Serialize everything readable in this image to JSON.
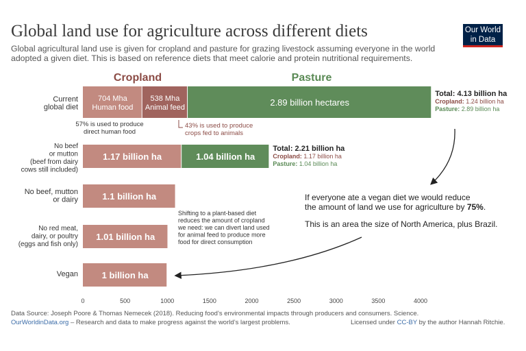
{
  "header": {
    "title": "Global land use for agriculture across different diets",
    "subtitle": "Global agricultural land use is given for cropland and pasture for grazing livestock assuming everyone in the world adopted a given diet. This is based on reference diets that meet calorie and protein nutritional requirements."
  },
  "logo": {
    "line1": "Our World",
    "line2": "in Data"
  },
  "colors": {
    "cropland": "#c28a80",
    "animal_feed": "#a0645e",
    "pasture": "#5f8c5a",
    "cropland_label": "#8b4b45",
    "pasture_label": "#5a8a55"
  },
  "chart_data": {
    "type": "bar",
    "orientation": "horizontal",
    "stacked": true,
    "xlim": [
      0,
      4000
    ],
    "xticks": [
      "0",
      "500",
      "1000",
      "1500",
      "2000",
      "2500",
      "3000",
      "3500",
      "4000"
    ],
    "legend": {
      "cropland": "Cropland",
      "pasture": "Pasture"
    },
    "categories": [
      {
        "label_lines": [
          "Current",
          "global diet"
        ],
        "segments": [
          {
            "type": "human_food",
            "value": 704,
            "label_lines": [
              "704 Mha",
              "Human food"
            ]
          },
          {
            "type": "animal_feed",
            "value": 538,
            "label_lines": [
              "538 Mha",
              "Animal feed"
            ]
          },
          {
            "type": "pasture",
            "value": 2890,
            "label_lines": [
              "2.89 billion hectares"
            ]
          }
        ],
        "total": {
          "title": "Total: 4.13 billion ha",
          "cropland_key": "Cropland:",
          "cropland_val": "1.24 billion ha",
          "pasture_key": "Pasture:",
          "pasture_val": "2.89 billion ha"
        }
      },
      {
        "label_lines": [
          "No beef",
          "or mutton",
          "(beef from dairy",
          "cows still included)"
        ],
        "segments": [
          {
            "type": "cropland",
            "value": 1170,
            "label_lines": [
              "1.17 billion ha"
            ]
          },
          {
            "type": "pasture",
            "value": 1040,
            "label_lines": [
              "1.04 billion ha"
            ]
          }
        ],
        "total": {
          "title": "Total: 2.21 billion ha",
          "cropland_key": "Cropland:",
          "cropland_val": "1.17 billion ha",
          "pasture_key": "Pasture:",
          "pasture_val": "1.04 billion ha"
        }
      },
      {
        "label_lines": [
          "No beef, mutton",
          "or dairy"
        ],
        "segments": [
          {
            "type": "cropland",
            "value": 1100,
            "label_lines": [
              "1.1 billion ha"
            ]
          }
        ]
      },
      {
        "label_lines": [
          "No red meat,",
          "dairy, or poultry",
          "(eggs and fish only)"
        ],
        "segments": [
          {
            "type": "cropland",
            "value": 1010,
            "label_lines": [
              "1.01 billion ha"
            ]
          }
        ]
      },
      {
        "label_lines": [
          "Vegan"
        ],
        "segments": [
          {
            "type": "cropland",
            "value": 1000,
            "label_lines": [
              "1 billion ha"
            ]
          }
        ]
      }
    ],
    "annotations": {
      "human_food_note": [
        "57% is used to produce",
        "direct human food"
      ],
      "animal_feed_note": [
        "43% is used to produce",
        "crops fed to animals"
      ],
      "shift_note": [
        "Shifting to a plant-based diet",
        "reduces the amount of cropland",
        "we need: we can divert land used",
        "for animal feed to produce more",
        "food for direct consumption"
      ],
      "vegan_line1": "If everyone ate a vegan diet we would reduce",
      "vegan_line2_prefix": "the amount of land we use for agriculture by ",
      "vegan_line2_bold": "75%",
      "vegan_line2_suffix": ".",
      "vegan_line3": "This is an area the size of North America, plus Brazil."
    }
  },
  "footer": {
    "source": "Data Source: Joseph Poore & Thomas Nemecek (2018). Reducing food’s environmental impacts through producers and consumers. Science.",
    "site_link": "OurWorldinData.org",
    "site_text": " – Research and data to make progress against the world’s largest problems.",
    "license_prefix": "Licensed under ",
    "license_link": "CC-BY",
    "license_suffix": " by the author Hannah Ritchie."
  }
}
